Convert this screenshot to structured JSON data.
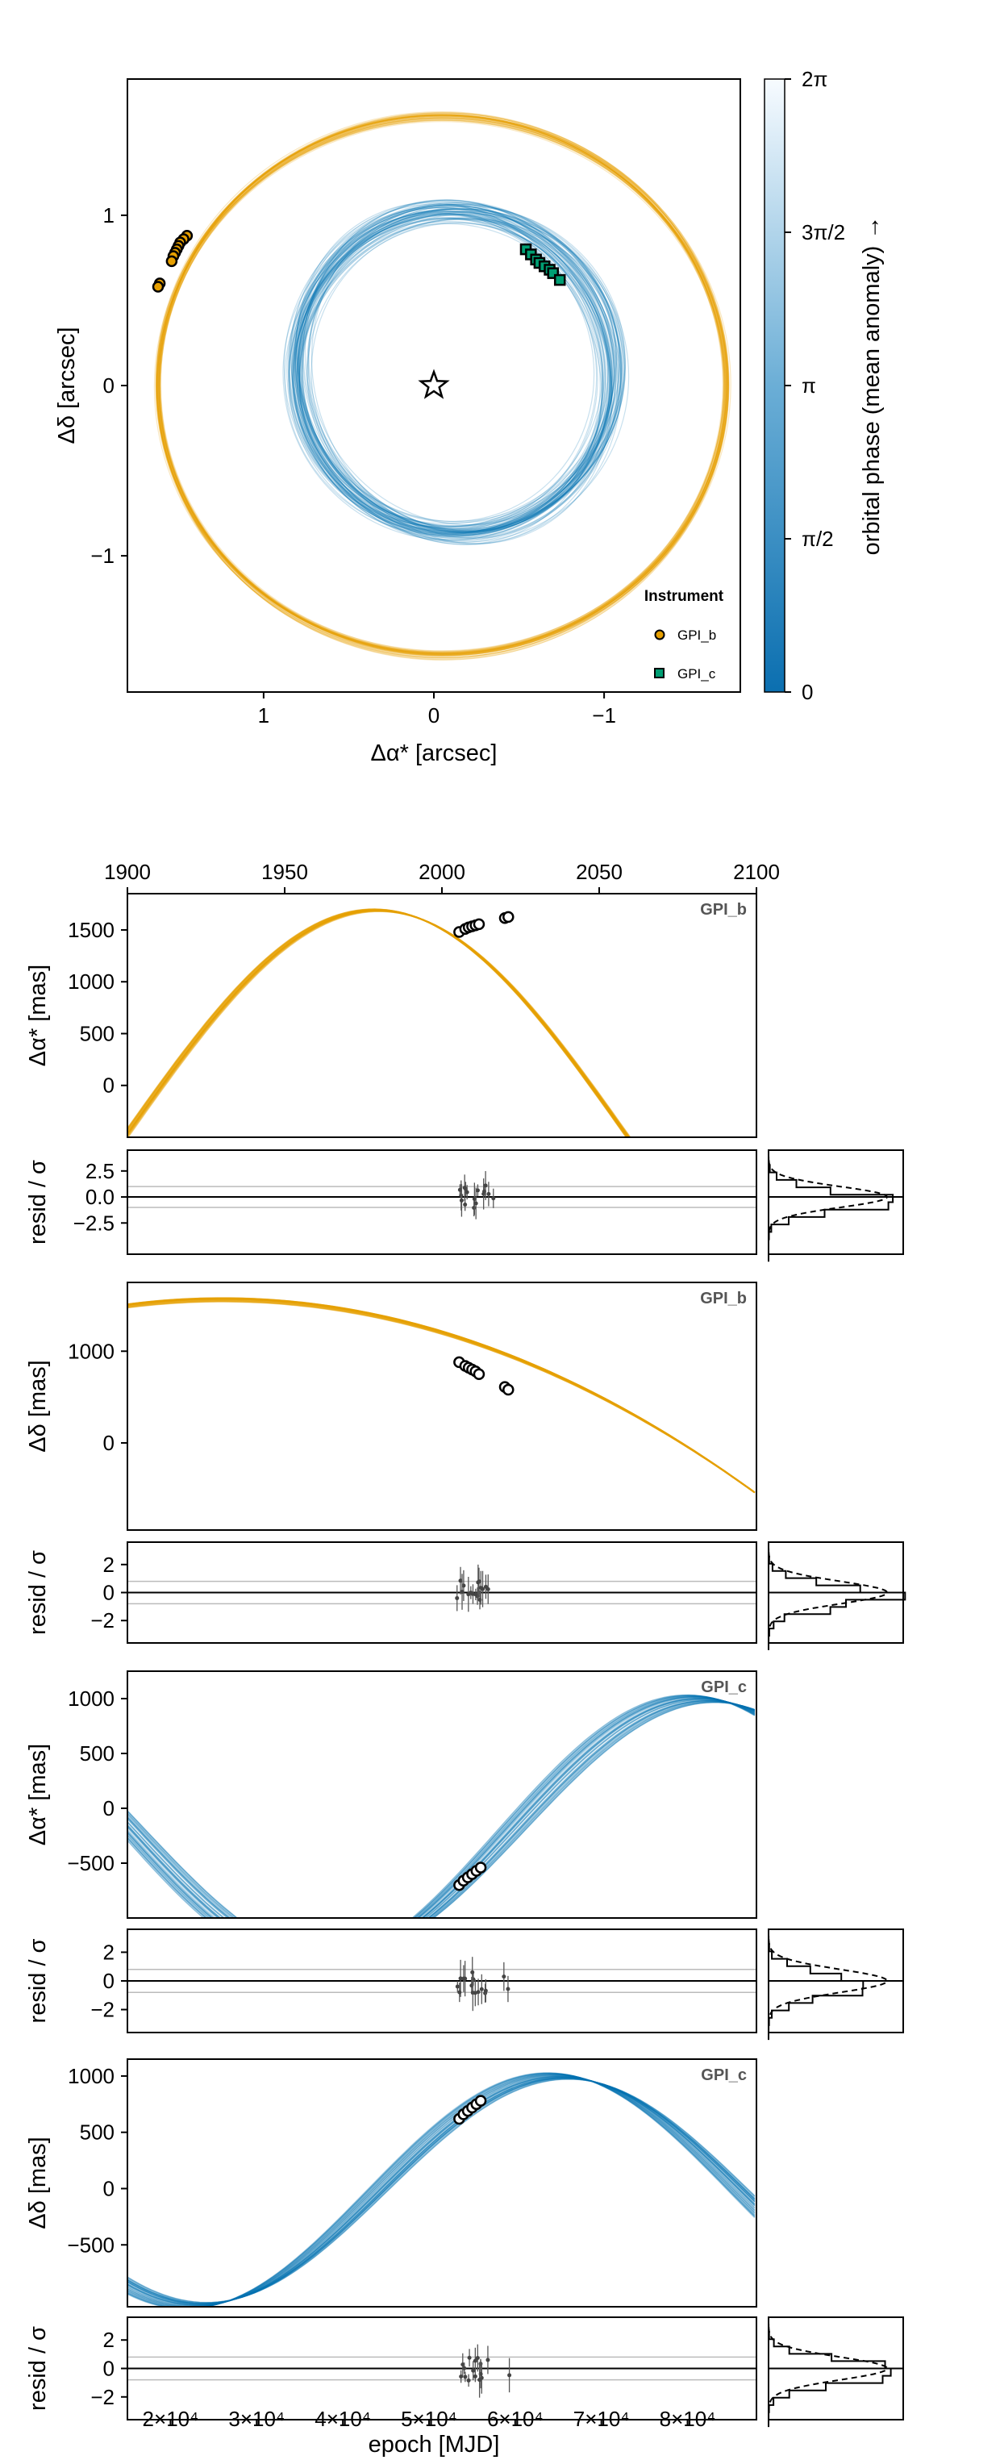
{
  "colors": {
    "planet_b": "#e69f00",
    "planet_c": "#0072b2",
    "marker_c": "#009e73",
    "colorbar_top": "#f7fbff",
    "colorbar_bottom": "#0b6fb0"
  },
  "chart_data": [
    {
      "type": "scatter",
      "kind": "sky-plane orbit plot",
      "xlabel": "Δα* [arcsec]",
      "ylabel": "Δδ [arcsec]",
      "xlim": [
        1.8,
        -1.8
      ],
      "ylim": [
        -1.8,
        1.8
      ],
      "xticks": [
        {
          "v": 1,
          "label": "1"
        },
        {
          "v": 0,
          "label": "0"
        },
        {
          "v": -1,
          "label": "−1"
        }
      ],
      "yticks": [
        {
          "v": -1,
          "label": "−1"
        },
        {
          "v": 0,
          "label": "0"
        },
        {
          "v": 1,
          "label": "1"
        }
      ],
      "star_marker": {
        "x": 0,
        "y": 0,
        "symbol": "star"
      },
      "series": [
        {
          "name": "GPI_b",
          "marker": "circle",
          "points": [
            [
              1.45,
              0.88
            ],
            [
              1.47,
              0.86
            ],
            [
              1.49,
              0.84
            ],
            [
              1.5,
              0.82
            ],
            [
              1.51,
              0.8
            ],
            [
              1.52,
              0.78
            ],
            [
              1.53,
              0.76
            ],
            [
              1.54,
              0.73
            ],
            [
              1.61,
              0.6
            ],
            [
              1.62,
              0.58
            ]
          ]
        },
        {
          "name": "GPI_c",
          "marker": "square",
          "points": [
            [
              -0.54,
              0.8
            ],
            [
              -0.57,
              0.77
            ],
            [
              -0.6,
              0.74
            ],
            [
              -0.62,
              0.72
            ],
            [
              -0.65,
              0.7
            ],
            [
              -0.68,
              0.68
            ],
            [
              -0.7,
              0.66
            ],
            [
              -0.74,
              0.62
            ]
          ]
        }
      ],
      "legend": {
        "title": "Instrument",
        "position": "bottom-right",
        "entries": [
          "GPI_b",
          "GPI_c"
        ]
      },
      "colorbar": {
        "label": "orbital phase (mean anomaly) →",
        "ticks": [
          "0",
          "π/2",
          "π",
          "3π/2",
          "2π"
        ]
      }
    },
    {
      "type": "line",
      "panel": "GPI_b Δα*",
      "tag": "GPI_b",
      "ylabel": "Δα* [mas]",
      "top_axis": {
        "values": [
          1900,
          1950,
          2000,
          2050,
          2100
        ]
      },
      "ylim": [
        -500,
        1850
      ],
      "yticks": [
        0,
        500,
        1000,
        1500
      ],
      "points": [
        [
          53500,
          1480
        ],
        [
          54200,
          1510
        ],
        [
          54600,
          1525
        ],
        [
          55000,
          1535
        ],
        [
          55400,
          1545
        ],
        [
          55800,
          1555
        ],
        [
          58800,
          1615
        ],
        [
          59200,
          1625
        ]
      ],
      "resid": {
        "ylabel": "resid / σ",
        "ylim": [
          -5.5,
          4.5
        ],
        "yticks": [
          "−2.5",
          "0.0",
          "2.5"
        ]
      }
    },
    {
      "type": "line",
      "panel": "GPI_b Δδ",
      "tag": "GPI_b",
      "ylabel": "Δδ [mas]",
      "ylim": [
        -950,
        1750
      ],
      "yticks": [
        0,
        1000
      ],
      "points": [
        [
          53500,
          880
        ],
        [
          54200,
          840
        ],
        [
          54600,
          820
        ],
        [
          55000,
          800
        ],
        [
          55400,
          780
        ],
        [
          55800,
          750
        ],
        [
          58800,
          610
        ],
        [
          59200,
          580
        ]
      ],
      "resid": {
        "ylabel": "resid / σ",
        "ylim": [
          -4.5,
          4.5
        ],
        "yticks": [
          "−2",
          "0",
          "2"
        ]
      }
    },
    {
      "type": "line",
      "panel": "GPI_c Δα*",
      "tag": "GPI_c",
      "ylabel": "Δα* [mas]",
      "ylim": [
        -1000,
        1250
      ],
      "yticks": [
        -500,
        0,
        500,
        1000
      ],
      "points": [
        [
          53500,
          -700
        ],
        [
          54000,
          -660
        ],
        [
          54500,
          -630
        ],
        [
          55000,
          -600
        ],
        [
          55500,
          -570
        ],
        [
          56000,
          -540
        ]
      ],
      "resid": {
        "ylabel": "resid / σ",
        "ylim": [
          -4.5,
          4.5
        ],
        "yticks": [
          "−2",
          "0",
          "2"
        ]
      }
    },
    {
      "type": "line",
      "panel": "GPI_c Δδ",
      "tag": "GPI_c",
      "ylabel": "Δδ [mas]",
      "xlabel": "epoch [MJD]",
      "ylim": [
        -1050,
        1150
      ],
      "yticks": [
        -500,
        0,
        500,
        1000
      ],
      "xticks": [
        20000,
        30000,
        40000,
        50000,
        60000,
        70000,
        80000
      ],
      "xtick_labels": [
        "2×10⁴",
        "3×10⁴",
        "4×10⁴",
        "5×10⁴",
        "6×10⁴",
        "7×10⁴",
        "8×10⁴"
      ],
      "xlim": [
        15000,
        88000
      ],
      "points": [
        [
          53500,
          620
        ],
        [
          54000,
          660
        ],
        [
          54500,
          690
        ],
        [
          55000,
          720
        ],
        [
          55500,
          750
        ],
        [
          56000,
          780
        ]
      ],
      "resid": {
        "ylabel": "resid / σ",
        "ylim": [
          -4.5,
          4.5
        ],
        "yticks": [
          "−2",
          "0",
          "2"
        ]
      }
    }
  ]
}
